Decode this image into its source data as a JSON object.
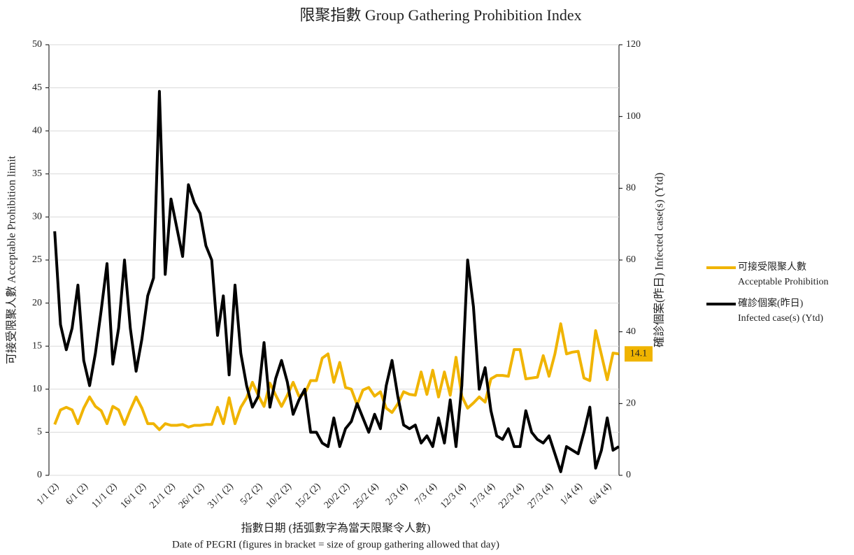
{
  "chart_data": {
    "type": "line",
    "title": "限聚指數 Group Gathering Prohibition Index",
    "ylabel": "可接受限聚人數 Acceptable Prohibition limit",
    "y2label": "確診個案(昨日) Infected case(s) (Ytd)",
    "xlabel": [
      "指數日期 (括弧數字為當天限聚令人數)",
      "Date of PEGRI (figures in bracket = size of group gathering allowed that day)"
    ],
    "categories": [
      "1/1 (2)",
      null,
      null,
      null,
      null,
      "6/1 (2)",
      null,
      null,
      null,
      null,
      "11/1 (2)",
      null,
      null,
      null,
      null,
      "16/1 (2)",
      null,
      null,
      null,
      null,
      "21/1 (2)",
      null,
      null,
      null,
      null,
      "26/1 (2)",
      null,
      null,
      null,
      null,
      "31/1 (2)",
      null,
      null,
      null,
      null,
      "5/2 (2)",
      null,
      null,
      null,
      null,
      "10/2 (2)",
      null,
      null,
      null,
      null,
      "15/2 (2)",
      null,
      null,
      null,
      null,
      "20/2 (2)",
      null,
      null,
      null,
      null,
      "25/2 (4)",
      null,
      null,
      null,
      null,
      "2/3 (4)",
      null,
      null,
      null,
      null,
      "7/3 (4)",
      null,
      null,
      null,
      null,
      "12/3 (4)",
      null,
      null,
      null,
      null,
      "17/3 (4)",
      null,
      null,
      null,
      null,
      "22/3 (4)",
      null,
      null,
      null,
      null,
      "27/3 (4)",
      null,
      null,
      null,
      null,
      "1/4 (4)",
      null,
      null,
      null,
      null,
      "6/4 (4)",
      null,
      null
    ],
    "series": [
      {
        "name": "可接受限聚人數\nAcceptable Prohibition",
        "color": "#f0b400",
        "values": [
          5.9,
          7.6,
          7.9,
          7.6,
          6,
          7.8,
          9.1,
          8,
          7.5,
          6,
          8,
          7.6,
          5.9,
          7.6,
          9.1,
          7.8,
          6,
          6,
          5.3,
          6,
          5.8,
          5.8,
          5.9,
          5.6,
          5.8,
          5.8,
          5.9,
          5.9,
          7.9,
          6,
          9,
          6,
          7.9,
          9,
          10.8,
          9.3,
          8,
          10.7,
          9.3,
          8,
          9.3,
          10.8,
          9.2,
          9.5,
          11,
          11,
          13.6,
          14.1,
          10.8,
          13.1,
          10.2,
          10,
          8.2,
          9.9,
          10.2,
          9.2,
          9.7,
          7.8,
          7.3,
          8.3,
          9.7,
          9.4,
          9.3,
          12,
          9.4,
          12.2,
          9.1,
          12,
          9.3,
          13.7,
          9.2,
          7.8,
          8.4,
          9.1,
          8.5,
          11.2,
          11.6,
          11.6,
          11.5,
          14.6,
          14.6,
          11.2,
          11.3,
          11.4,
          13.9,
          11.5,
          14.1,
          17.6,
          14.1,
          14.3,
          14.4,
          11.3,
          11,
          16.8,
          14,
          11.1,
          14.2,
          14.1
        ]
      },
      {
        "name": "確診個案(昨日)\nInfected case(s) (Ytd)",
        "color": "#000000",
        "axis": "y2",
        "values": [
          68,
          42,
          35,
          41,
          53,
          32,
          25,
          34,
          46,
          59,
          31,
          41,
          60,
          41,
          29,
          38,
          50,
          55,
          107,
          56,
          77,
          69,
          61,
          81,
          76,
          73,
          64,
          60,
          39,
          50,
          28,
          53,
          34,
          25,
          19,
          22,
          37,
          19,
          27,
          32,
          26,
          17,
          21,
          24,
          12,
          12,
          9,
          8,
          16,
          8,
          13,
          15,
          20,
          16,
          12,
          17,
          13,
          25,
          32,
          22,
          14,
          13,
          14,
          9,
          11,
          8,
          16,
          9,
          21,
          8,
          25,
          60,
          47,
          24,
          30,
          18,
          11,
          10,
          13,
          8,
          8,
          18,
          12,
          10,
          9,
          11,
          6,
          1,
          8,
          7,
          6,
          12,
          19,
          2,
          7,
          16,
          7,
          8
        ]
      }
    ],
    "ylim": [
      0,
      50
    ],
    "yticks": [
      0,
      5,
      10,
      15,
      20,
      25,
      30,
      35,
      40,
      45,
      50
    ],
    "y2lim": [
      0,
      120
    ],
    "y2ticks": [
      0,
      20,
      40,
      60,
      80,
      100,
      120
    ],
    "grid": true,
    "legend": "right"
  }
}
